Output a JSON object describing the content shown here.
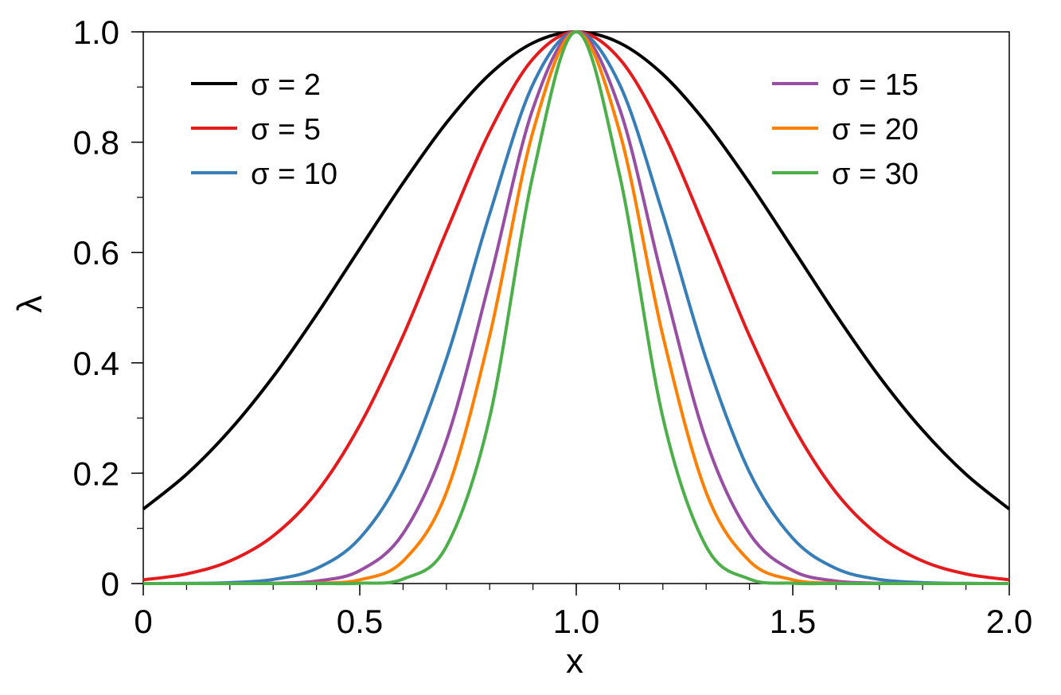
{
  "chart_data": {
    "type": "line",
    "xlabel": "x",
    "ylabel": "λ",
    "xlim": [
      0,
      2
    ],
    "ylim": [
      0,
      1
    ],
    "grid": false,
    "x_ticks": [
      "0",
      "0.5",
      "1.0",
      "1.5",
      "2.0"
    ],
    "x_tick_values": [
      0,
      0.5,
      1.0,
      1.5,
      2.0
    ],
    "y_ticks": [
      "0",
      "0.2",
      "0.4",
      "0.6",
      "0.8",
      "1.0"
    ],
    "y_tick_values": [
      0,
      0.2,
      0.4,
      0.6,
      0.8,
      1.0
    ],
    "x_minor_step": 0.1,
    "y_minor_step": 0.1,
    "legend_placement": "top-left and top-right",
    "x": [
      0,
      0.1,
      0.2,
      0.3,
      0.4,
      0.5,
      0.6,
      0.7,
      0.8,
      0.9,
      1.0,
      1.1,
      1.2,
      1.3,
      1.4,
      1.5,
      1.6,
      1.7,
      1.8,
      1.9,
      2.0
    ],
    "series": [
      {
        "name": "σ = 2",
        "color": "#000000",
        "values": [
          0.135,
          0.198,
          0.278,
          0.375,
          0.487,
          0.607,
          0.726,
          0.835,
          0.923,
          0.98,
          1.0,
          0.98,
          0.923,
          0.835,
          0.726,
          0.607,
          0.487,
          0.375,
          0.278,
          0.198,
          0.135
        ]
      },
      {
        "name": "σ = 5",
        "color": "#e41a1c",
        "values": [
          0.0067,
          0.0174,
          0.0408,
          0.0863,
          0.165,
          0.287,
          0.449,
          0.638,
          0.819,
          0.951,
          1.0,
          0.951,
          0.819,
          0.638,
          0.449,
          0.287,
          0.165,
          0.0863,
          0.0408,
          0.0174,
          0.0067
        ]
      },
      {
        "name": "σ = 10",
        "color": "#377eb8",
        "values": [
          5e-05,
          0.0003,
          0.0017,
          0.0074,
          0.0273,
          0.0821,
          0.202,
          0.407,
          0.67,
          0.905,
          1.0,
          0.905,
          0.67,
          0.407,
          0.202,
          0.0821,
          0.0273,
          0.0074,
          0.0017,
          0.0003,
          5e-05
        ]
      },
      {
        "name": "σ = 15",
        "color": "#984ea3",
        "values": [
          0,
          0,
          0.0001,
          0.0006,
          0.0045,
          0.0235,
          0.0907,
          0.259,
          0.549,
          0.861,
          1.0,
          0.861,
          0.549,
          0.259,
          0.0907,
          0.0235,
          0.0045,
          0.0006,
          0.0001,
          0,
          0
        ]
      },
      {
        "name": "σ = 20",
        "color": "#ff7f00",
        "values": [
          0,
          0,
          0,
          0.0001,
          0.0007,
          0.0067,
          0.0408,
          0.165,
          0.449,
          0.819,
          1.0,
          0.819,
          0.449,
          0.165,
          0.0408,
          0.0067,
          0.0007,
          0.0001,
          0,
          0,
          0
        ]
      },
      {
        "name": "σ = 30",
        "color": "#4daf4a",
        "values": [
          0,
          0,
          0,
          0,
          0,
          0.0006,
          0.0082,
          0.0672,
          0.301,
          0.741,
          1.0,
          0.741,
          0.301,
          0.0672,
          0.0082,
          0.0006,
          0,
          0,
          0,
          0,
          0
        ]
      }
    ]
  }
}
